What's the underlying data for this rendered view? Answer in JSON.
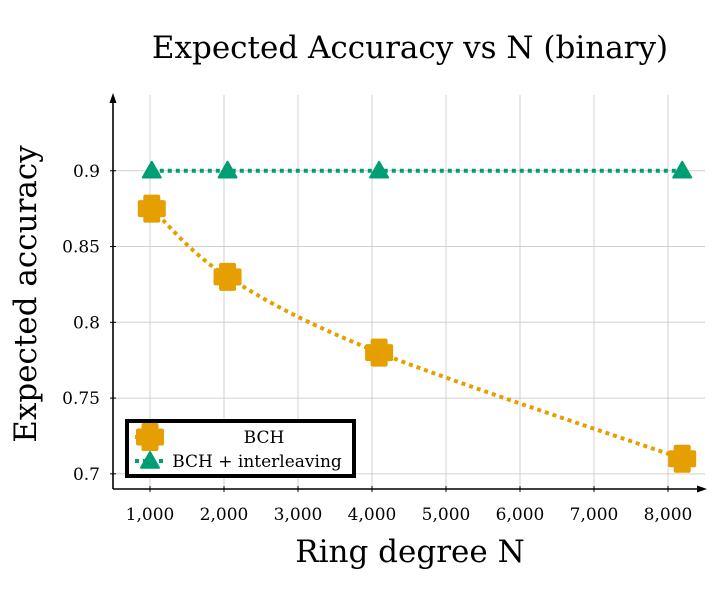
{
  "chart_data": {
    "type": "line",
    "title": "Expected Accuracy vs N (binary)",
    "xlabel": "Ring degree N",
    "ylabel": "Expected accuracy",
    "x": [
      1024,
      2048,
      4096,
      8192
    ],
    "xlim": [
      500,
      8500
    ],
    "ylim": [
      0.69,
      0.95
    ],
    "xticks": [
      1000,
      2000,
      3000,
      4000,
      5000,
      6000,
      7000,
      8000
    ],
    "xtick_labels": [
      "1,000",
      "2,000",
      "3,000",
      "4,000",
      "5,000",
      "6,000",
      "7,000",
      "8,000"
    ],
    "yticks": [
      0.7,
      0.75,
      0.8,
      0.85,
      0.9
    ],
    "ytick_labels": [
      "0.7",
      "0.75",
      "0.8",
      "0.85",
      "0.9"
    ],
    "grid": true,
    "legend_position": "bottom-left",
    "series": [
      {
        "name": "BCH",
        "values": [
          0.875,
          0.83,
          0.78,
          0.71
        ],
        "color": "#E69F00",
        "marker": "plus",
        "line_style": "dotted",
        "curve": "smooth"
      },
      {
        "name": "BCH + interleaving",
        "values": [
          0.9,
          0.9,
          0.9,
          0.9
        ],
        "color": "#009E73",
        "marker": "triangle",
        "line_style": "dotted",
        "curve": "linear"
      }
    ]
  }
}
